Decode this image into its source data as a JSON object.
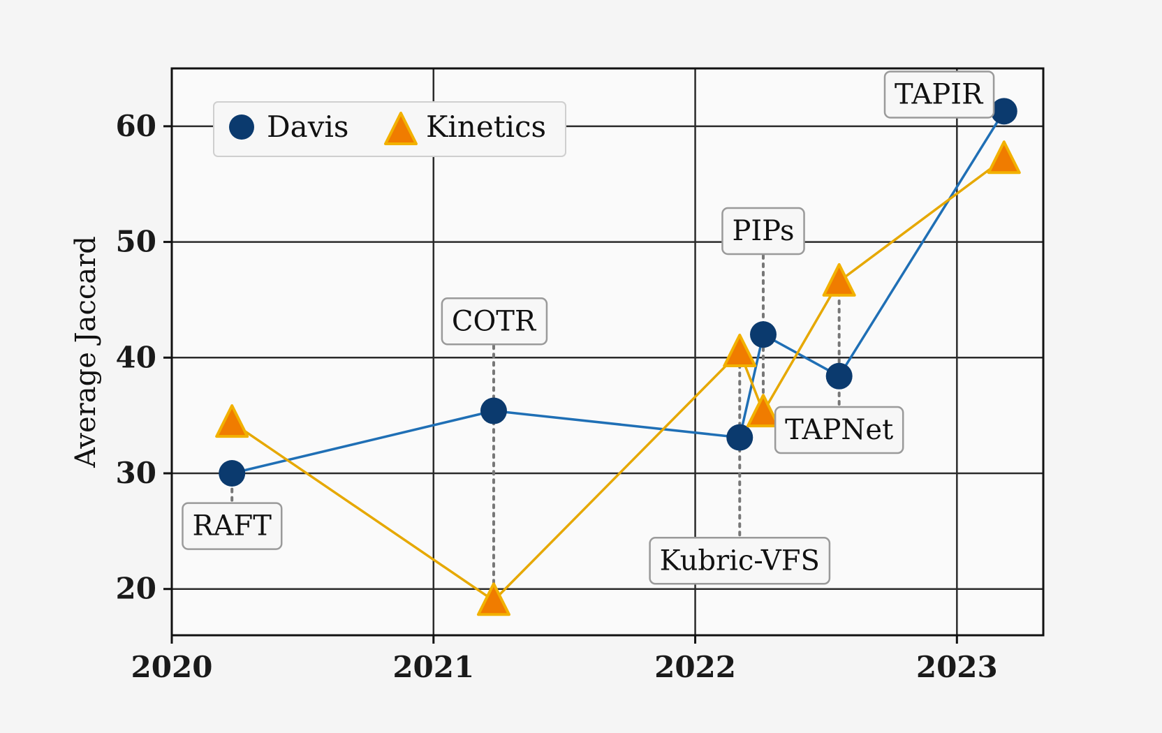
{
  "chart_data": {
    "type": "line",
    "title": "",
    "xlabel": "",
    "ylabel": "Average Jaccard",
    "xlim": [
      2020,
      2023.33
    ],
    "ylim": [
      16,
      65
    ],
    "xticks": [
      2020,
      2021,
      2022,
      2023
    ],
    "xtick_labels": [
      "2020",
      "2021",
      "2022",
      "2023"
    ],
    "yticks": [
      20,
      30,
      40,
      50,
      60
    ],
    "ytick_labels": [
      "20",
      "30",
      "40",
      "50",
      "60"
    ],
    "grid": true,
    "legend": "top-left",
    "series": [
      {
        "name": "Davis",
        "marker": "circle",
        "color": "#1f6fb5",
        "marker_color": "#0b3a6e",
        "points": [
          {
            "x": 2020.23,
            "y": 30.0
          },
          {
            "x": 2021.23,
            "y": 35.4
          },
          {
            "x": 2022.17,
            "y": 33.1
          },
          {
            "x": 2022.26,
            "y": 42.0
          },
          {
            "x": 2022.55,
            "y": 38.4
          },
          {
            "x": 2023.18,
            "y": 61.3
          }
        ]
      },
      {
        "name": "Kinetics",
        "marker": "triangle",
        "color": "#e6a800",
        "marker_color": "#f07c00",
        "points": [
          {
            "x": 2020.23,
            "y": 34.4
          },
          {
            "x": 2021.23,
            "y": 19.0
          },
          {
            "x": 2022.17,
            "y": 40.5
          },
          {
            "x": 2022.26,
            "y": 35.3
          },
          {
            "x": 2022.55,
            "y": 46.6
          },
          {
            "x": 2023.18,
            "y": 57.2
          }
        ]
      }
    ],
    "annotations": [
      {
        "text": "RAFT",
        "x": 2020.23,
        "y": 25.5,
        "from_y": 30.0
      },
      {
        "text": "COTR",
        "x": 2021.23,
        "y": 43.2,
        "from_y": 19.0
      },
      {
        "text": "Kubric-VFS",
        "x": 2022.17,
        "y": 22.5,
        "from_y": 41.0
      },
      {
        "text": "PIPs",
        "x": 2022.26,
        "y": 51.0,
        "from_y": 35.0
      },
      {
        "text": "TAPNet",
        "x": 2022.55,
        "y": 33.8,
        "from_y": 46.6
      },
      {
        "text": "TAPIR",
        "x": 2022.93,
        "y": 62.8,
        "from_y": 61.3
      }
    ]
  }
}
